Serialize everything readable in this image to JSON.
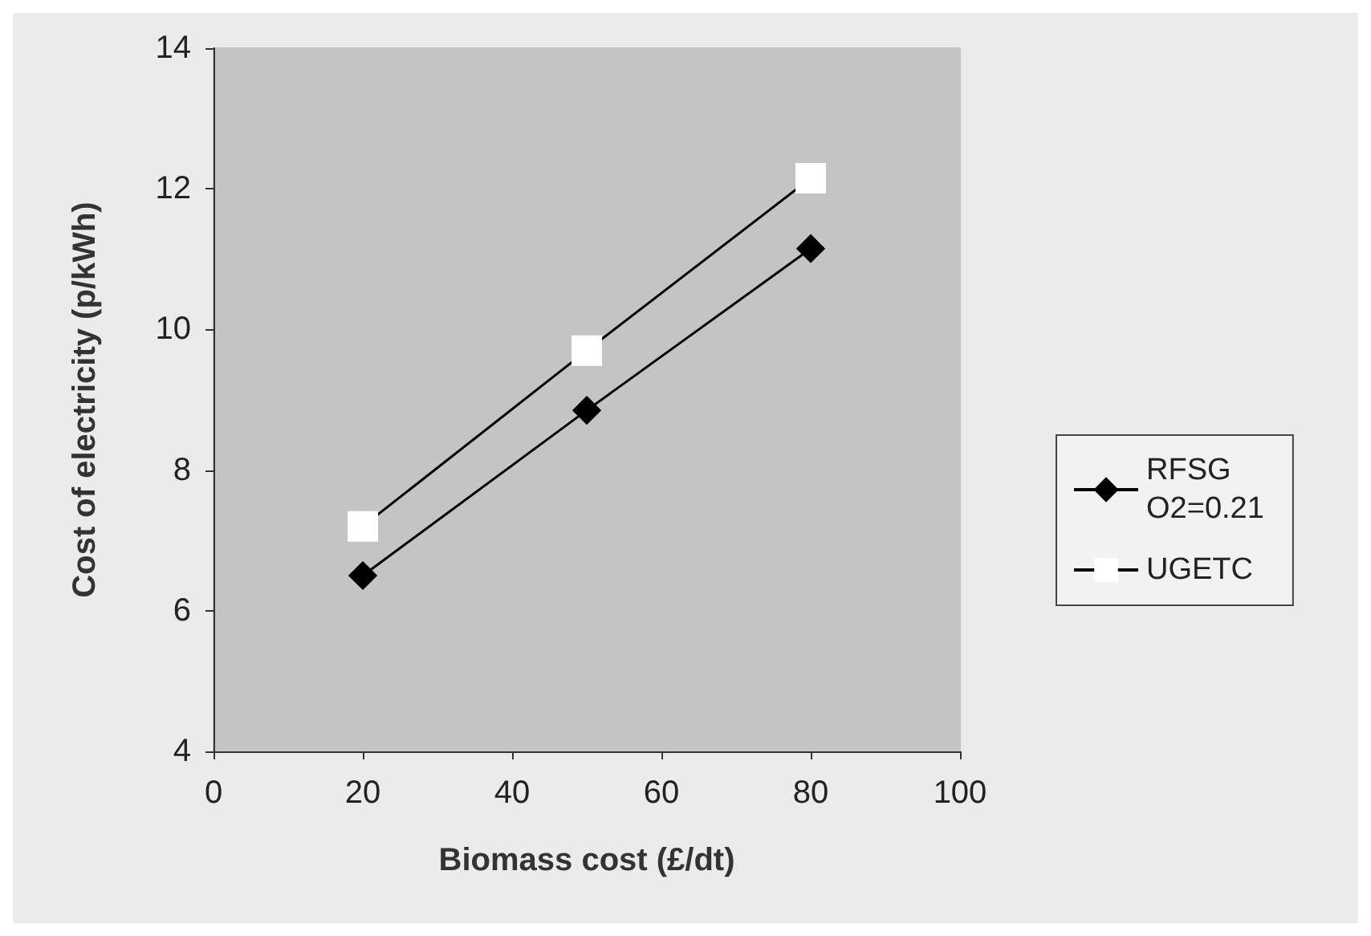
{
  "chart_data": {
    "type": "line",
    "xlabel": "Biomass cost (£/dt)",
    "ylabel": "Cost of electricity (p/kWh)",
    "x": [
      20,
      50,
      80
    ],
    "series": [
      {
        "name": "RFSG\nO2=0.21",
        "color": "#000000",
        "marker": "diamond",
        "values": [
          6.5,
          8.85,
          11.15
        ]
      },
      {
        "name": "UGETC",
        "color": "#000000",
        "marker": "square",
        "values": [
          7.2,
          9.7,
          12.15
        ]
      }
    ],
    "xlim": [
      0,
      100
    ],
    "xticks": [
      0,
      20,
      40,
      60,
      80,
      100
    ],
    "ylim": [
      4,
      14
    ],
    "yticks": [
      4,
      6,
      8,
      10,
      12,
      14
    ],
    "grid": false,
    "legend": "right",
    "line_style": "solid"
  }
}
